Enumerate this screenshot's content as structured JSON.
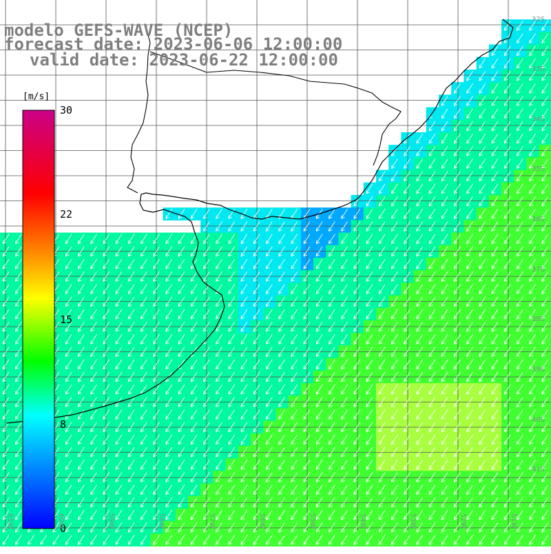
{
  "header": {
    "line1": "modelo GEFS-WAVE (NCEP)",
    "line2": "forecast date: 2023-06-06 12:00:00",
    "line3": "valid date: 2023-06-22 12:00:00"
  },
  "colorbar": {
    "unit": "[m/s]",
    "ticks": [
      "30",
      "22",
      "15",
      "8",
      "0"
    ],
    "min": 0,
    "max": 30,
    "colors": [
      "#0000ff",
      "#00aaff",
      "#00ffff",
      "#00ff00",
      "#ffff00",
      "#ff8800",
      "#ff0000",
      "#cc0088"
    ]
  },
  "grid": {
    "lat_labels": [
      "32S",
      "33S",
      "34S",
      "35S",
      "36S",
      "37S",
      "38S",
      "39S",
      "40S",
      "41S"
    ],
    "lon_labels": [
      "61W",
      "60W",
      "59W",
      "58W",
      "57W",
      "56W",
      "55W",
      "54W",
      "53W",
      "52W",
      "51W"
    ]
  },
  "wind_field": {
    "direction": "from north-east",
    "speed_range_ms": [
      7,
      13
    ],
    "colors": {
      "low": "#00a8ff",
      "mid": "#00e8f0",
      "high": "#00f8a0",
      "higher": "#40ff30",
      "max": "#a8ff40"
    }
  },
  "colors": {
    "land": "#ffffff",
    "coastline": "#000000",
    "gridline": "#555555",
    "arrow": "#ffffff",
    "title": "#7f7f7f"
  }
}
